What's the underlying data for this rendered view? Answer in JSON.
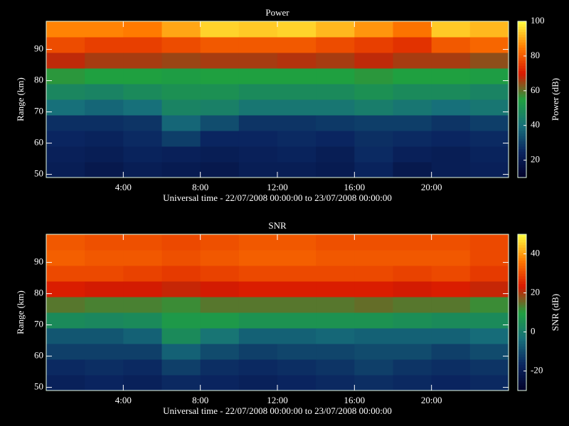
{
  "chart_data": [
    {
      "type": "heatmap",
      "title": "Power",
      "xlabel": "Universal time - 22/07/2008 00:00:00 to 23/07/2008 00:00:00",
      "ylabel": "Range (km)",
      "colorbar_label": "Power (dB)",
      "x": [
        1,
        3,
        5,
        7,
        9,
        11,
        13,
        15,
        17,
        19,
        21,
        23
      ],
      "y": [
        51.5,
        56.5,
        61.5,
        66.5,
        71.5,
        76.5,
        81.5,
        86.5,
        91.5,
        96.5
      ],
      "z": [
        [
          22,
          20,
          22,
          21,
          20,
          22,
          22,
          21,
          24,
          20,
          22,
          23
        ],
        [
          23,
          22,
          24,
          23,
          22,
          23,
          24,
          22,
          26,
          23,
          22,
          24
        ],
        [
          25,
          24,
          26,
          30,
          25,
          25,
          26,
          25,
          27,
          26,
          25,
          26
        ],
        [
          27,
          27,
          28,
          38,
          33,
          28,
          28,
          29,
          30,
          30,
          28,
          30
        ],
        [
          40,
          38,
          40,
          46,
          45,
          42,
          42,
          42,
          44,
          42,
          40,
          42
        ],
        [
          47,
          46,
          48,
          50,
          50,
          48,
          48,
          48,
          50,
          48,
          48,
          46
        ],
        [
          56,
          55,
          55,
          54,
          55,
          55,
          55,
          55,
          56,
          55,
          55,
          54
        ],
        [
          68,
          66,
          66,
          65,
          66,
          66,
          67,
          66,
          68,
          66,
          66,
          64
        ],
        [
          78,
          76,
          76,
          78,
          80,
          80,
          80,
          78,
          76,
          74,
          80,
          82
        ],
        [
          86,
          86,
          85,
          90,
          95,
          94,
          95,
          92,
          88,
          84,
          94,
          92
        ]
      ],
      "xlim": [
        0,
        24
      ],
      "xticks": [
        {
          "value": 4,
          "label": "4:00"
        },
        {
          "value": 8,
          "label": "8:00"
        },
        {
          "value": 12,
          "label": "12:00"
        },
        {
          "value": 16,
          "label": "16:00"
        },
        {
          "value": 20,
          "label": "20:00"
        }
      ],
      "ylim": [
        49,
        99
      ],
      "yticks": [
        50,
        60,
        70,
        80,
        90
      ],
      "zlim": [
        10,
        100
      ],
      "zticks": [
        20,
        40,
        60,
        80,
        100
      ],
      "colormap": [
        "#000028",
        "#0a2560",
        "#17707a",
        "#1fa040",
        "#d81800",
        "#ff7a00",
        "#ffff40"
      ]
    },
    {
      "type": "heatmap",
      "title": "SNR",
      "xlabel": "Universal time - 22/07/2008 00:00:00 to 23/07/2008 00:00:00",
      "ylabel": "Range (km)",
      "colorbar_label": "SNR (dB)",
      "x": [
        1,
        3,
        5,
        7,
        9,
        11,
        13,
        15,
        17,
        19,
        21,
        23
      ],
      "y": [
        51.5,
        56.5,
        61.5,
        66.5,
        71.5,
        76.5,
        81.5,
        86.5,
        91.5,
        96.5
      ],
      "z": [
        [
          -18,
          -17,
          -18,
          -16,
          -17,
          -18,
          -17,
          -16,
          -15,
          -16,
          -17,
          -16
        ],
        [
          -16,
          -15,
          -16,
          -12,
          -15,
          -16,
          -15,
          -14,
          -12,
          -14,
          -15,
          -14
        ],
        [
          -12,
          -12,
          -12,
          -6,
          -10,
          -12,
          -11,
          -11,
          -10,
          -10,
          -12,
          -10
        ],
        [
          -8,
          -8,
          -6,
          4,
          -2,
          -6,
          -6,
          -5,
          -6,
          -6,
          -6,
          -4
        ],
        [
          4,
          3,
          4,
          8,
          8,
          6,
          6,
          6,
          6,
          5,
          4,
          4
        ],
        [
          14,
          13,
          13,
          12,
          14,
          14,
          14,
          14,
          15,
          14,
          14,
          12
        ],
        [
          24,
          23,
          23,
          22,
          23,
          24,
          24,
          24,
          24,
          23,
          24,
          22
        ],
        [
          30,
          30,
          29,
          28,
          29,
          30,
          30,
          30,
          30,
          29,
          30,
          28
        ],
        [
          33,
          32,
          32,
          31,
          32,
          33,
          33,
          32,
          32,
          32,
          32,
          30
        ],
        [
          32,
          31,
          31,
          30,
          31,
          32,
          32,
          31,
          31,
          31,
          31,
          30
        ]
      ],
      "xlim": [
        0,
        24
      ],
      "xticks": [
        {
          "value": 4,
          "label": "4:00"
        },
        {
          "value": 8,
          "label": "8:00"
        },
        {
          "value": 12,
          "label": "12:00"
        },
        {
          "value": 16,
          "label": "16:00"
        },
        {
          "value": 20,
          "label": "20:00"
        }
      ],
      "ylim": [
        49,
        99
      ],
      "yticks": [
        50,
        60,
        70,
        80,
        90
      ],
      "zlim": [
        -30,
        50
      ],
      "zticks": [
        -20,
        0,
        20,
        40
      ],
      "colormap": [
        "#000028",
        "#0a2560",
        "#17707a",
        "#1fa040",
        "#d81800",
        "#ff7a00",
        "#ffff40"
      ]
    }
  ]
}
